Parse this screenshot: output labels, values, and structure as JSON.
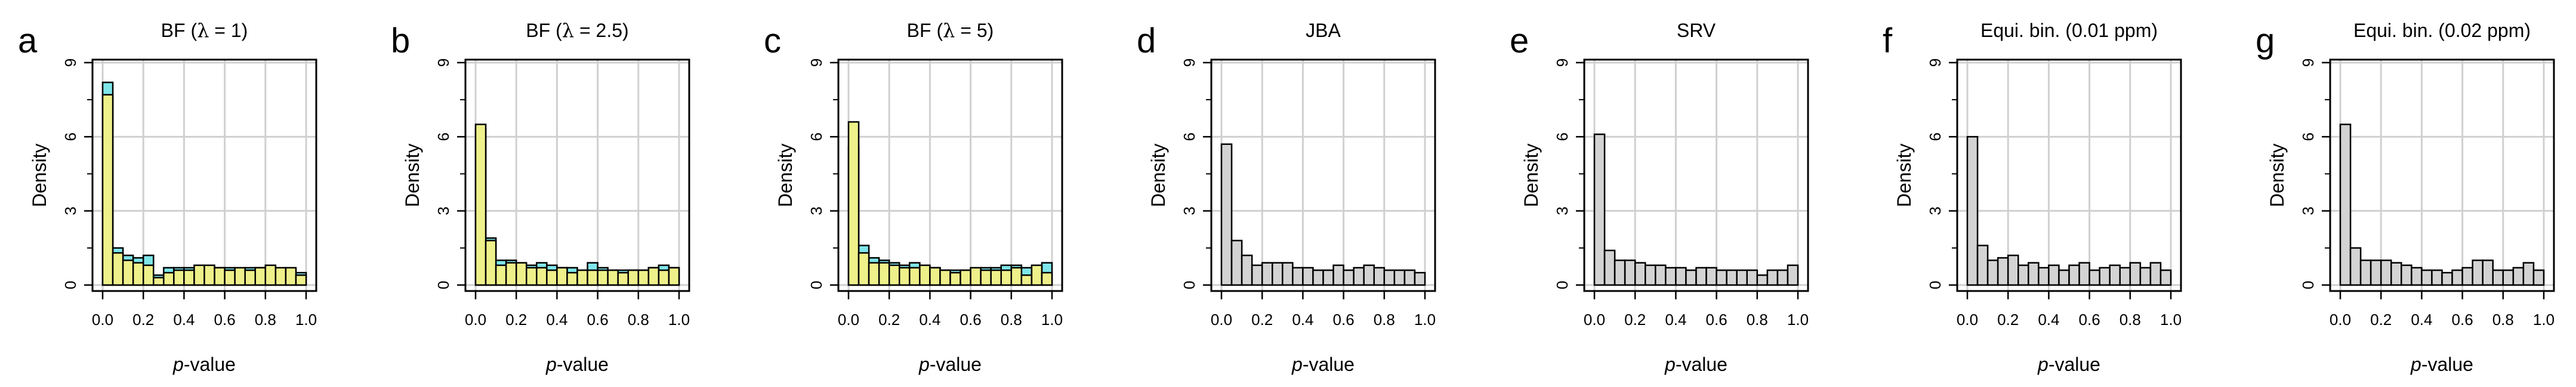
{
  "chart_data": [
    {
      "type": "bar",
      "panel_label": "a",
      "title_prefix": "BF (",
      "title_symbol": "λ",
      "title_suffix": " = 1)",
      "xlabel_italic": "p",
      "xlabel_rest": "-value",
      "ylabel": "Density",
      "xlim": [
        0,
        1
      ],
      "ylim": [
        0,
        9
      ],
      "xticks": [
        "0.0",
        "0.2",
        "0.4",
        "0.6",
        "0.8",
        "1.0"
      ],
      "yticks": [
        "0",
        "3",
        "6",
        "9"
      ],
      "grid": true,
      "bin_width": 0.05,
      "series": [
        {
          "color": "#7fe6ea",
          "values": [
            8.2,
            1.5,
            1.2,
            1.1,
            1.2,
            0.4,
            0.7,
            0.7,
            0.7,
            0.6,
            0.5,
            0.7,
            0.7,
            0.6,
            0.7,
            0.7,
            0.6,
            0.5,
            0.6,
            0.5
          ]
        },
        {
          "color": "#eef08a",
          "values": [
            7.7,
            1.3,
            1.0,
            0.9,
            0.8,
            0.3,
            0.5,
            0.6,
            0.6,
            0.8,
            0.8,
            0.7,
            0.6,
            0.7,
            0.6,
            0.7,
            0.8,
            0.7,
            0.7,
            0.4
          ]
        }
      ]
    },
    {
      "type": "bar",
      "panel_label": "b",
      "title_prefix": "BF (",
      "title_symbol": "λ",
      "title_suffix": " = 2.5)",
      "xlabel_italic": "p",
      "xlabel_rest": "-value",
      "ylabel": "Density",
      "xlim": [
        0,
        1
      ],
      "ylim": [
        0,
        9
      ],
      "xticks": [
        "0.0",
        "0.2",
        "0.4",
        "0.6",
        "0.8",
        "1.0"
      ],
      "yticks": [
        "0",
        "3",
        "6",
        "9"
      ],
      "grid": true,
      "bin_width": 0.05,
      "series": [
        {
          "color": "#7fe6ea",
          "values": [
            6.3,
            1.9,
            1.0,
            1.0,
            0.7,
            0.8,
            0.9,
            0.8,
            0.7,
            0.7,
            0.6,
            0.9,
            0.7,
            0.6,
            0.6,
            0.6,
            0.6,
            0.7,
            0.8,
            0.7
          ]
        },
        {
          "color": "#eef08a",
          "values": [
            6.5,
            1.8,
            0.8,
            0.9,
            0.9,
            0.7,
            0.7,
            0.6,
            0.7,
            0.5,
            0.6,
            0.6,
            0.6,
            0.6,
            0.5,
            0.6,
            0.6,
            0.7,
            0.6,
            0.7
          ]
        }
      ]
    },
    {
      "type": "bar",
      "panel_label": "c",
      "title_prefix": "BF (",
      "title_symbol": "λ",
      "title_suffix": " = 5)",
      "xlabel_italic": "p",
      "xlabel_rest": "-value",
      "ylabel": "Density",
      "xlim": [
        0,
        1
      ],
      "ylim": [
        0,
        9
      ],
      "xticks": [
        "0.0",
        "0.2",
        "0.4",
        "0.6",
        "0.8",
        "1.0"
      ],
      "yticks": [
        "0",
        "3",
        "6",
        "9"
      ],
      "grid": true,
      "bin_width": 0.05,
      "series": [
        {
          "color": "#7fe6ea",
          "values": [
            5.6,
            1.6,
            1.1,
            1.0,
            0.9,
            0.8,
            0.9,
            0.7,
            0.7,
            0.6,
            0.6,
            0.6,
            0.6,
            0.7,
            0.7,
            0.8,
            0.8,
            0.7,
            0.6,
            0.9
          ]
        },
        {
          "color": "#eef08a",
          "values": [
            6.6,
            1.3,
            0.9,
            0.9,
            0.8,
            0.7,
            0.7,
            0.8,
            0.7,
            0.6,
            0.5,
            0.6,
            0.7,
            0.6,
            0.6,
            0.6,
            0.7,
            0.4,
            0.8,
            0.5
          ]
        }
      ]
    },
    {
      "type": "bar",
      "panel_label": "d",
      "title_prefix": "JBA",
      "xlabel_italic": "p",
      "xlabel_rest": "-value",
      "ylabel": "Density",
      "xlim": [
        0,
        1
      ],
      "ylim": [
        0,
        9
      ],
      "xticks": [
        "0.0",
        "0.2",
        "0.4",
        "0.6",
        "0.8",
        "1.0"
      ],
      "yticks": [
        "0",
        "3",
        "6",
        "9"
      ],
      "grid": true,
      "bin_width": 0.05,
      "series": [
        {
          "color": "#d3d3d3",
          "values": [
            5.7,
            1.8,
            1.2,
            0.8,
            0.9,
            0.9,
            0.9,
            0.7,
            0.7,
            0.6,
            0.6,
            0.8,
            0.6,
            0.7,
            0.8,
            0.7,
            0.6,
            0.6,
            0.6,
            0.5
          ]
        }
      ]
    },
    {
      "type": "bar",
      "panel_label": "e",
      "title_prefix": "SRV",
      "xlabel_italic": "p",
      "xlabel_rest": "-value",
      "ylabel": "Density",
      "xlim": [
        0,
        1
      ],
      "ylim": [
        0,
        9
      ],
      "xticks": [
        "0.0",
        "0.2",
        "0.4",
        "0.6",
        "0.8",
        "1.0"
      ],
      "yticks": [
        "0",
        "3",
        "6",
        "9"
      ],
      "grid": true,
      "bin_width": 0.05,
      "series": [
        {
          "color": "#d3d3d3",
          "values": [
            6.1,
            1.4,
            1.0,
            1.0,
            0.9,
            0.8,
            0.8,
            0.7,
            0.7,
            0.6,
            0.7,
            0.7,
            0.6,
            0.6,
            0.6,
            0.6,
            0.4,
            0.6,
            0.6,
            0.8
          ]
        }
      ]
    },
    {
      "type": "bar",
      "panel_label": "f",
      "title_prefix": "Equi. bin. (0.01 ppm)",
      "xlabel_italic": "p",
      "xlabel_rest": "-value",
      "ylabel": "Density",
      "xlim": [
        0,
        1
      ],
      "ylim": [
        0,
        9
      ],
      "xticks": [
        "0.0",
        "0.2",
        "0.4",
        "0.6",
        "0.8",
        "1.0"
      ],
      "yticks": [
        "0",
        "3",
        "6",
        "9"
      ],
      "grid": true,
      "bin_width": 0.05,
      "series": [
        {
          "color": "#d3d3d3",
          "values": [
            6.0,
            1.6,
            1.0,
            1.1,
            1.2,
            0.8,
            0.9,
            0.7,
            0.8,
            0.6,
            0.8,
            0.9,
            0.6,
            0.7,
            0.8,
            0.7,
            0.9,
            0.7,
            0.9,
            0.6
          ]
        }
      ]
    },
    {
      "type": "bar",
      "panel_label": "g",
      "title_prefix": "Equi. bin. (0.02 ppm)",
      "xlabel_italic": "p",
      "xlabel_rest": "-value",
      "ylabel": "Density",
      "xlim": [
        0,
        1
      ],
      "ylim": [
        0,
        9
      ],
      "xticks": [
        "0.0",
        "0.2",
        "0.4",
        "0.6",
        "0.8",
        "1.0"
      ],
      "yticks": [
        "0",
        "3",
        "6",
        "9"
      ],
      "grid": true,
      "bin_width": 0.05,
      "series": [
        {
          "color": "#d3d3d3",
          "values": [
            6.5,
            1.5,
            1.0,
            1.0,
            1.0,
            0.9,
            0.8,
            0.7,
            0.6,
            0.6,
            0.5,
            0.6,
            0.7,
            1.0,
            1.0,
            0.6,
            0.6,
            0.7,
            0.9,
            0.6
          ]
        }
      ]
    }
  ]
}
